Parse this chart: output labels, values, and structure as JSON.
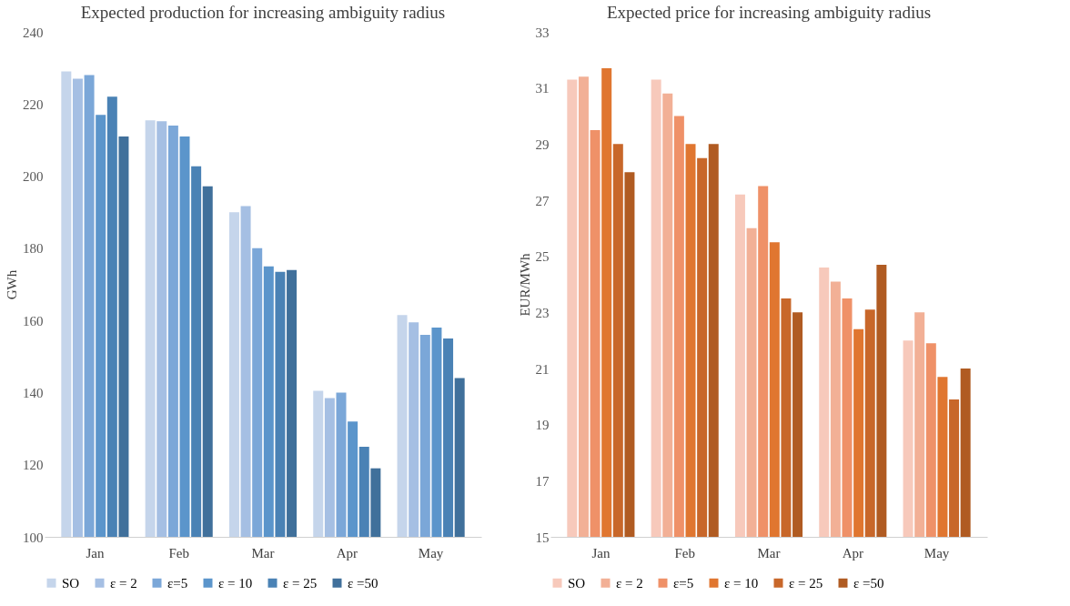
{
  "chart_data": [
    {
      "type": "bar",
      "title": "Expected production for increasing ambiguity radius",
      "ylabel": "GWh",
      "categories": [
        "Jan",
        "Feb",
        "Mar",
        "Apr",
        "May"
      ],
      "ylim": [
        100,
        240
      ],
      "yticks": [
        100,
        120,
        140,
        160,
        180,
        200,
        220,
        240
      ],
      "grid": false,
      "legend": "bottom",
      "series": [
        {
          "name": "SO",
          "color": "#c5d5eb",
          "values": [
            229,
            215.5,
            190,
            140.5,
            161.5
          ]
        },
        {
          "name": "ε = 2",
          "color": "#a5bfe3",
          "values": [
            227,
            215.2,
            191.7,
            138.5,
            159.5
          ]
        },
        {
          "name": "ε=5",
          "color": "#7ba7d8",
          "values": [
            228,
            214,
            180,
            140,
            156
          ]
        },
        {
          "name": "ε = 10",
          "color": "#5b95cb",
          "values": [
            217,
            211,
            175,
            132,
            158
          ]
        },
        {
          "name": "ε = 25",
          "color": "#4a82b5",
          "values": [
            222,
            202.7,
            173.5,
            125,
            155
          ]
        },
        {
          "name": "ε =50",
          "color": "#40709b",
          "values": [
            211,
            197.2,
            174,
            119,
            144
          ]
        }
      ]
    },
    {
      "type": "bar",
      "title": "Expected price for increasing ambiguity radius",
      "ylabel": "EUR/MWh",
      "categories": [
        "Jan",
        "Feb",
        "Mar",
        "Apr",
        "May"
      ],
      "ylim": [
        15,
        33
      ],
      "yticks": [
        15,
        17,
        19,
        21,
        23,
        25,
        27,
        29,
        31,
        33
      ],
      "grid": false,
      "legend": "bottom",
      "series": [
        {
          "name": "SO",
          "color": "#f7c9bb",
          "values": [
            31.3,
            31.3,
            27.2,
            24.6,
            22
          ]
        },
        {
          "name": "ε = 2",
          "color": "#f2b096",
          "values": [
            31.4,
            30.8,
            26,
            24.1,
            23
          ]
        },
        {
          "name": "ε=5",
          "color": "#ef9168",
          "values": [
            29.5,
            30,
            27.5,
            23.5,
            21.9
          ]
        },
        {
          "name": "ε = 10",
          "color": "#e07630",
          "values": [
            31.7,
            29,
            25.5,
            22.4,
            20.7
          ]
        },
        {
          "name": "ε = 25",
          "color": "#c8672a",
          "values": [
            29,
            28.5,
            23.5,
            23.1,
            19.9
          ]
        },
        {
          "name": "ε =50",
          "color": "#b05b22",
          "values": [
            28,
            29,
            23,
            24.7,
            21
          ]
        }
      ]
    }
  ]
}
